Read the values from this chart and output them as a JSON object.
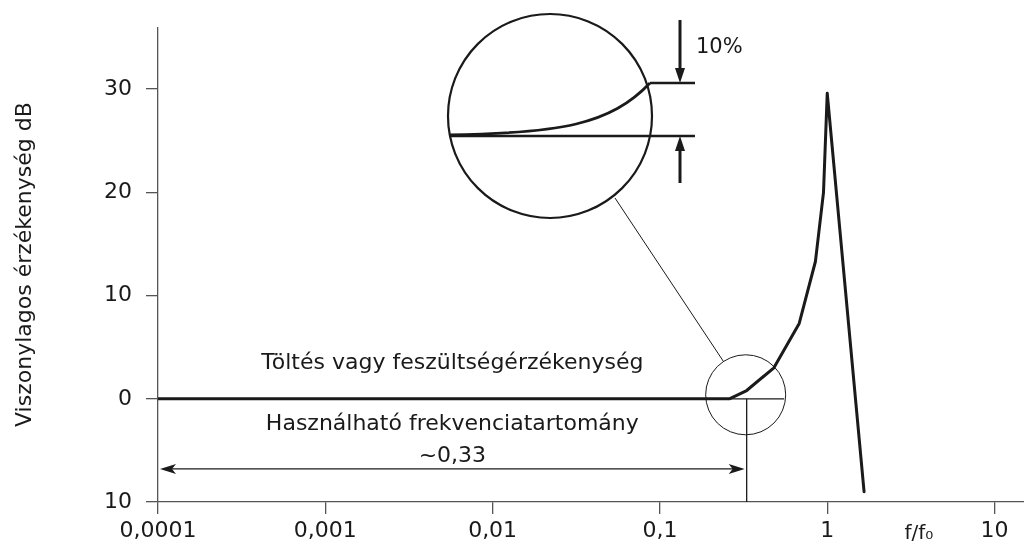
{
  "chart_data": {
    "type": "line",
    "xlabel": "f/f₀",
    "ylabel": "Viszonylagos érzékenység dB",
    "log": "x",
    "color": "#1a1a1a",
    "marker": "none",
    "x": [
      0.0001,
      0.001,
      0.01,
      0.1,
      0.26,
      0.33,
      0.48,
      0.68,
      0.85,
      0.95,
      1.0,
      1.66
    ],
    "values": [
      0,
      0,
      0,
      0,
      0,
      0.8,
      3,
      7.3,
      13.3,
      20,
      29.6,
      -9
    ],
    "xlim": [
      0.0001,
      15
    ],
    "ylim": [
      -10,
      36
    ],
    "xticks": [
      {
        "value": 0.0001,
        "label": "0,0001"
      },
      {
        "value": 0.001,
        "label": "0,001"
      },
      {
        "value": 0.01,
        "label": "0,01"
      },
      {
        "value": 0.1,
        "label": "0,1"
      },
      1,
      10
    ],
    "yticks": [
      {
        "value": -10,
        "label": "10"
      },
      0,
      10,
      20,
      30
    ],
    "grid": false,
    "legend": false,
    "ref_lines": [
      {
        "axis": "x",
        "value": 0.33,
        "label": "~0,33"
      },
      {
        "axis": "y",
        "value": 0
      }
    ],
    "annotations": [
      "Töltés vagy feszültségérzékenység",
      "Használható frekvenciatartomány",
      "10%"
    ]
  }
}
